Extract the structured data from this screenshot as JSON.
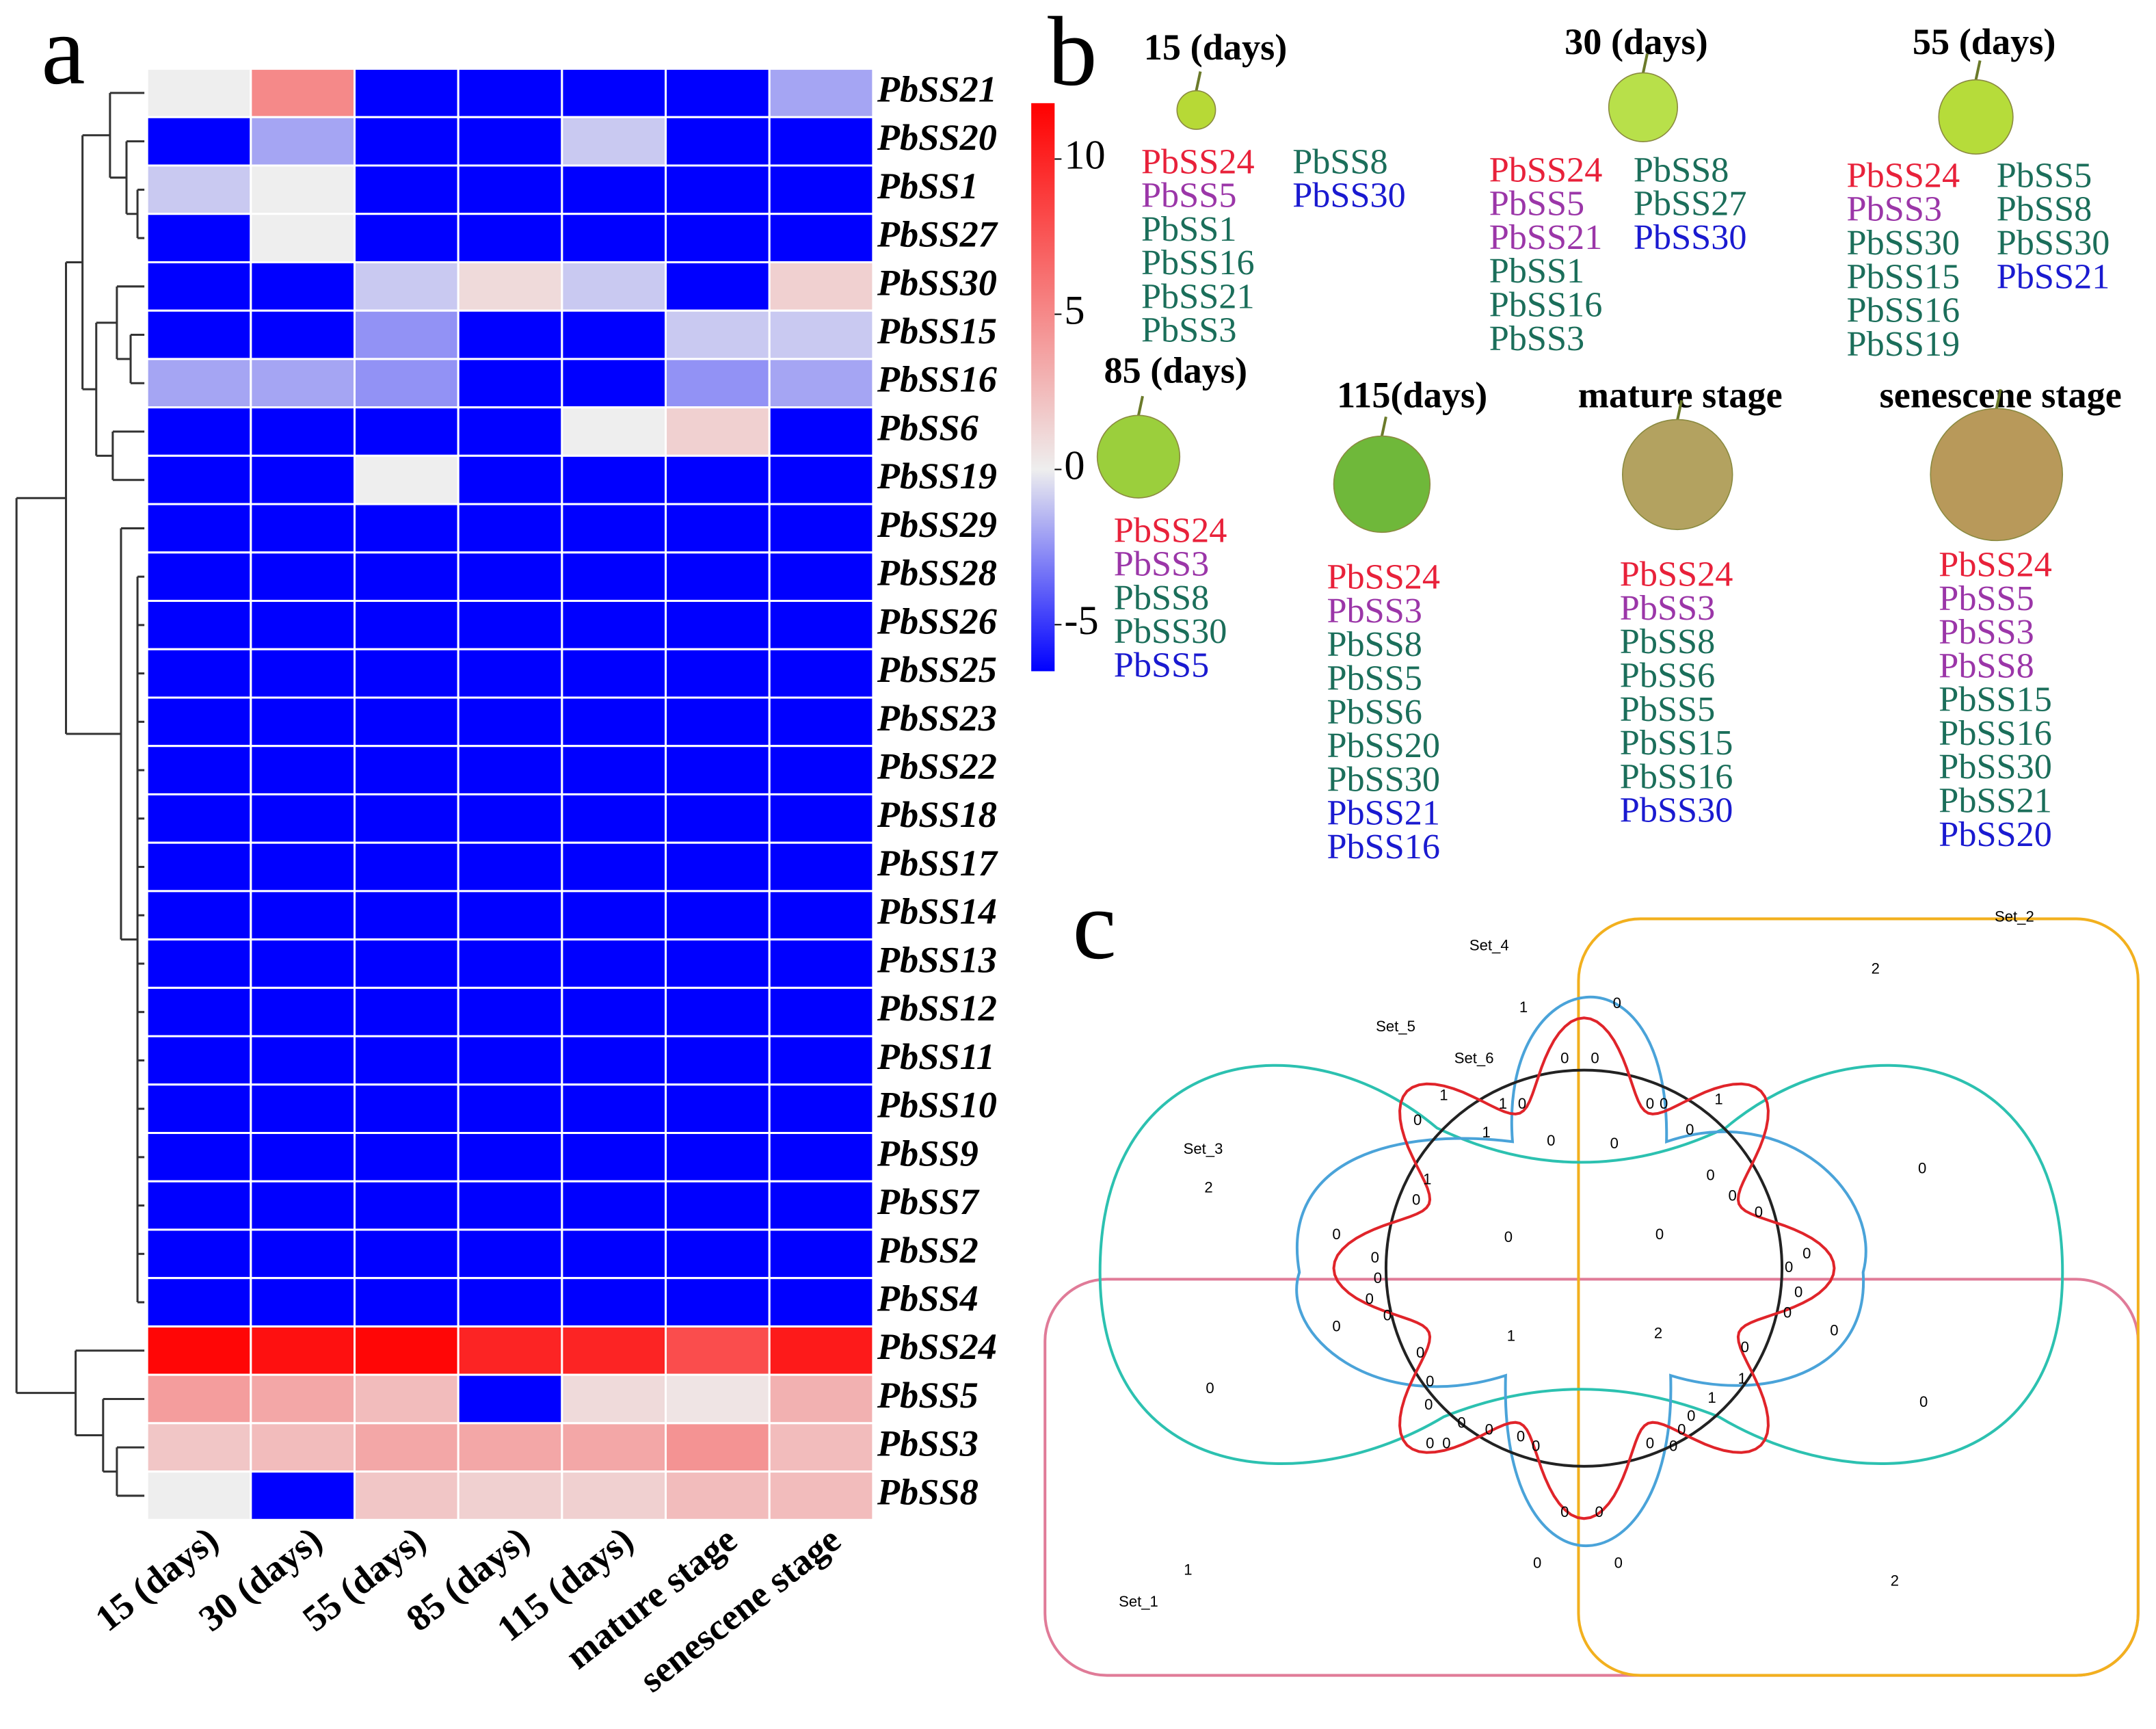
{
  "panel_labels": [
    "a",
    "b",
    "c"
  ],
  "chart_data": {
    "type": "heatmap",
    "rows": [
      "PbSS21",
      "PbSS20",
      "PbSS1",
      "PbSS27",
      "PbSS30",
      "PbSS15",
      "PbSS16",
      "PbSS6",
      "PbSS19",
      "PbSS29",
      "PbSS28",
      "PbSS26",
      "PbSS25",
      "PbSS23",
      "PbSS22",
      "PbSS18",
      "PbSS17",
      "PbSS14",
      "PbSS13",
      "PbSS12",
      "PbSS11",
      "PbSS10",
      "PbSS9",
      "PbSS7",
      "PbSS2",
      "PbSS4",
      "PbSS24",
      "PbSS5",
      "PbSS3",
      "PbSS8"
    ],
    "columns": [
      "15 (days)",
      "30 (days)",
      "55 (days)",
      "85 (days)",
      "115 (days)",
      "mature stage",
      "senescene stage"
    ],
    "values": [
      [
        0,
        5,
        -6.5,
        -6.5,
        -6.5,
        -6.5,
        -2
      ],
      [
        -6.5,
        -2,
        -6.5,
        -6.5,
        -1,
        -6.5,
        -6.5
      ],
      [
        -1,
        0,
        -6.5,
        -6.5,
        -6.5,
        -6.5,
        -6.5
      ],
      [
        -6.5,
        0,
        -6.5,
        -6.5,
        -6.5,
        -6.5,
        -6.5
      ],
      [
        -6.5,
        -6.5,
        -1,
        1,
        -1,
        -6.5,
        1.5
      ],
      [
        -6.5,
        -6.5,
        -2.5,
        -6.5,
        -6.5,
        -1,
        -1
      ],
      [
        -2,
        -2,
        -2.5,
        -6.5,
        -6.5,
        -2.5,
        -2
      ],
      [
        -6.5,
        -6.5,
        -6.5,
        -6.5,
        0,
        1.5,
        -6.5
      ],
      [
        -6.5,
        -6.5,
        0,
        -6.5,
        -6.5,
        -6.5,
        -6.5
      ],
      [
        -6.5,
        -6.5,
        -6.5,
        -6.5,
        -6.5,
        -6.5,
        -6.5
      ],
      [
        -6.5,
        -6.5,
        -6.5,
        -6.5,
        -6.5,
        -6.5,
        -6.5
      ],
      [
        -6.5,
        -6.5,
        -6.5,
        -6.5,
        -6.5,
        -6.5,
        -6.5
      ],
      [
        -6.5,
        -6.5,
        -6.5,
        -6.5,
        -6.5,
        -6.5,
        -6.5
      ],
      [
        -6.5,
        -6.5,
        -6.5,
        -6.5,
        -6.5,
        -6.5,
        -6.5
      ],
      [
        -6.5,
        -6.5,
        -6.5,
        -6.5,
        -6.5,
        -6.5,
        -6.5
      ],
      [
        -6.5,
        -6.5,
        -6.5,
        -6.5,
        -6.5,
        -6.5,
        -6.5
      ],
      [
        -6.5,
        -6.5,
        -6.5,
        -6.5,
        -6.5,
        -6.5,
        -6.5
      ],
      [
        -6.5,
        -6.5,
        -6.5,
        -6.5,
        -6.5,
        -6.5,
        -6.5
      ],
      [
        -6.5,
        -6.5,
        -6.5,
        -6.5,
        -6.5,
        -6.5,
        -6.5
      ],
      [
        -6.5,
        -6.5,
        -6.5,
        -6.5,
        -6.5,
        -6.5,
        -6.5
      ],
      [
        -6.5,
        -6.5,
        -6.5,
        -6.5,
        -6.5,
        -6.5,
        -6.5
      ],
      [
        -6.5,
        -6.5,
        -6.5,
        -6.5,
        -6.5,
        -6.5,
        -6.5
      ],
      [
        -6.5,
        -6.5,
        -6.5,
        -6.5,
        -6.5,
        -6.5,
        -6.5
      ],
      [
        -6.5,
        -6.5,
        -6.5,
        -6.5,
        -6.5,
        -6.5,
        -6.5
      ],
      [
        -6.5,
        -6.5,
        -6.5,
        -6.5,
        -6.5,
        -6.5,
        -6.5
      ],
      [
        -6.5,
        -6.5,
        -6.5,
        -6.5,
        -6.5,
        -6.5,
        -6.5
      ],
      [
        11.5,
        11,
        11.5,
        10,
        10,
        8,
        10.5
      ],
      [
        4,
        3.5,
        2.5,
        -6.5,
        1,
        0.5,
        3
      ],
      [
        2,
        2.5,
        3.5,
        3.5,
        3.5,
        4.5,
        2.5
      ],
      [
        0,
        -6.5,
        2,
        1.5,
        1.5,
        2.5,
        2.5
      ]
    ],
    "colorscale": [
      {
        "value": -6.5,
        "color": "#0000ff"
      },
      {
        "value": 0,
        "color": "#eeeeee"
      },
      {
        "value": 11.8,
        "color": "#ff0000"
      }
    ],
    "zticks": [
      10,
      5,
      0,
      -5
    ]
  },
  "panel_b": {
    "stages": [
      {
        "label": "15 (days)",
        "columns": [
          [
            {
              "name": "PbSS24",
              "color": "#e8213a"
            },
            {
              "name": "PbSS5",
              "color": "#9b36a8"
            },
            {
              "name": "PbSS1",
              "color": "#1b6e5a"
            },
            {
              "name": "PbSS16",
              "color": "#1b6e5a"
            },
            {
              "name": "PbSS21",
              "color": "#1b6e5a"
            },
            {
              "name": "PbSS3",
              "color": "#1b6e5a"
            }
          ],
          [
            {
              "name": "PbSS8",
              "color": "#1b6e5a"
            },
            {
              "name": "PbSS30",
              "color": "#1a1ad0"
            }
          ]
        ]
      },
      {
        "label": "30 (days)",
        "columns": [
          [
            {
              "name": "PbSS24",
              "color": "#e8213a"
            },
            {
              "name": "PbSS5",
              "color": "#9b36a8"
            },
            {
              "name": "PbSS21",
              "color": "#9b36a8"
            },
            {
              "name": "PbSS1",
              "color": "#1b6e5a"
            },
            {
              "name": "PbSS16",
              "color": "#1b6e5a"
            },
            {
              "name": "PbSS3",
              "color": "#1b6e5a"
            }
          ],
          [
            {
              "name": "PbSS8",
              "color": "#1b6e5a"
            },
            {
              "name": "PbSS27",
              "color": "#1b6e5a"
            },
            {
              "name": "PbSS30",
              "color": "#1a1ad0"
            }
          ]
        ]
      },
      {
        "label": "55 (days)",
        "columns": [
          [
            {
              "name": "PbSS24",
              "color": "#e8213a"
            },
            {
              "name": "PbSS3",
              "color": "#9b36a8"
            },
            {
              "name": "PbSS30",
              "color": "#1b6e5a"
            },
            {
              "name": "PbSS15",
              "color": "#1b6e5a"
            },
            {
              "name": "PbSS16",
              "color": "#1b6e5a"
            },
            {
              "name": "PbSS19",
              "color": "#1b6e5a"
            }
          ],
          [
            {
              "name": "PbSS5",
              "color": "#1b6e5a"
            },
            {
              "name": "PbSS8",
              "color": "#1b6e5a"
            },
            {
              "name": "PbSS30",
              "color": "#1b6e5a"
            },
            {
              "name": "PbSS21",
              "color": "#1a1ad0"
            }
          ]
        ]
      },
      {
        "label": "85 (days)",
        "columns": [
          [
            {
              "name": "PbSS24",
              "color": "#e8213a"
            },
            {
              "name": "PbSS3",
              "color": "#9b36a8"
            },
            {
              "name": "PbSS8",
              "color": "#1b6e5a"
            },
            {
              "name": "PbSS30",
              "color": "#1b6e5a"
            },
            {
              "name": "PbSS5",
              "color": "#1a1ad0"
            }
          ]
        ]
      },
      {
        "label": "115(days)",
        "columns": [
          [
            {
              "name": "PbSS24",
              "color": "#e8213a"
            },
            {
              "name": "PbSS3",
              "color": "#9b36a8"
            },
            {
              "name": "PbSS8",
              "color": "#1b6e5a"
            },
            {
              "name": "PbSS5",
              "color": "#1b6e5a"
            },
            {
              "name": "PbSS6",
              "color": "#1b6e5a"
            },
            {
              "name": "PbSS20",
              "color": "#1b6e5a"
            },
            {
              "name": "PbSS30",
              "color": "#1b6e5a"
            },
            {
              "name": "PbSS21",
              "color": "#1a1ad0"
            },
            {
              "name": "PbSS16",
              "color": "#1a1ad0"
            }
          ]
        ]
      },
      {
        "label": "mature stage",
        "columns": [
          [
            {
              "name": "PbSS24",
              "color": "#e8213a"
            },
            {
              "name": "PbSS3",
              "color": "#9b36a8"
            },
            {
              "name": "PbSS8",
              "color": "#1b6e5a"
            },
            {
              "name": "PbSS6",
              "color": "#1b6e5a"
            },
            {
              "name": "PbSS5",
              "color": "#1b6e5a"
            },
            {
              "name": "PbSS15",
              "color": "#1b6e5a"
            },
            {
              "name": "PbSS16",
              "color": "#1b6e5a"
            },
            {
              "name": "PbSS30",
              "color": "#1a1ad0"
            }
          ]
        ]
      },
      {
        "label": "senescene stage",
        "columns": [
          [
            {
              "name": "PbSS24",
              "color": "#e8213a"
            },
            {
              "name": "PbSS5",
              "color": "#9b36a8"
            },
            {
              "name": "PbSS3",
              "color": "#9b36a8"
            },
            {
              "name": "PbSS8",
              "color": "#9b36a8"
            },
            {
              "name": "PbSS15",
              "color": "#1b6e5a"
            },
            {
              "name": "PbSS16",
              "color": "#1b6e5a"
            },
            {
              "name": "PbSS30",
              "color": "#1b6e5a"
            },
            {
              "name": "PbSS21",
              "color": "#1b6e5a"
            },
            {
              "name": "PbSS20",
              "color": "#1a1ad0"
            }
          ]
        ]
      }
    ]
  },
  "panel_c": {
    "sets": [
      "Set_1",
      "Set_2",
      "Set_3",
      "Set_4",
      "Set_5",
      "Set_6"
    ],
    "counts": [
      2,
      1,
      0,
      0,
      0,
      1,
      1,
      0,
      0,
      0,
      1,
      0,
      1,
      0,
      0,
      0,
      0,
      2,
      0,
      1,
      0,
      0,
      0,
      0,
      0,
      0,
      0,
      0,
      0,
      0,
      0,
      0,
      0,
      1,
      2,
      0,
      0,
      0,
      0,
      0,
      0,
      0,
      1,
      0,
      0,
      1,
      0,
      0,
      0,
      0,
      0,
      0,
      0,
      0,
      0,
      0,
      0,
      0,
      0,
      0,
      1,
      2
    ]
  }
}
